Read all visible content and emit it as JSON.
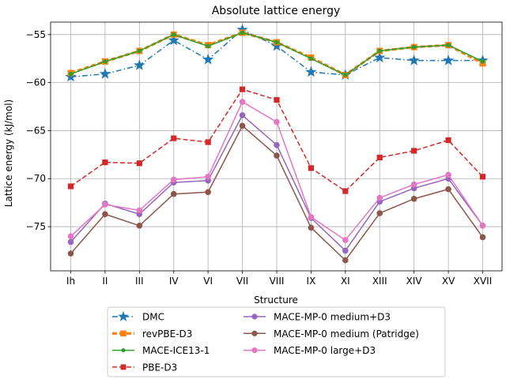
{
  "chart_data": {
    "type": "line",
    "title": "Absolute lattice energy",
    "xlabel": "Structure",
    "ylabel": "Lattice energy (kJ/mol)",
    "categories": [
      "Ih",
      "II",
      "III",
      "IV",
      "VI",
      "VII",
      "VIII",
      "IX",
      "XI",
      "XIII",
      "XIV",
      "XV",
      "XVII"
    ],
    "ylim": [
      -79.6,
      -53.7
    ],
    "yticks": [
      -55,
      -60,
      -65,
      -70,
      -75
    ],
    "grid": true,
    "legend": "lower center, below plot, 2 columns",
    "series": [
      {
        "name": "DMC",
        "color": "#1f77b4",
        "marker": "star",
        "linestyle": "dashdot",
        "values": [
          -59.4,
          -59.1,
          -58.2,
          -55.6,
          -57.6,
          -54.5,
          -56.2,
          -58.9,
          -59.2,
          -57.4,
          -57.7,
          -57.7,
          -57.7
        ]
      },
      {
        "name": "revPBE-D3",
        "color": "#ff7f0e",
        "marker": "square",
        "linestyle": "dashed",
        "thick": true,
        "values": [
          -59.0,
          -57.8,
          -56.7,
          -55.0,
          -56.1,
          -54.8,
          -55.8,
          -57.4,
          -59.2,
          -56.7,
          -56.3,
          -56.1,
          -58.0
        ]
      },
      {
        "name": "MACE-ICE13-1",
        "color": "#2ca02c",
        "marker": "dot",
        "linestyle": "solid",
        "values": [
          -59.1,
          -57.8,
          -56.7,
          -55.0,
          -56.2,
          -54.8,
          -55.8,
          -57.5,
          -59.2,
          -56.7,
          -56.3,
          -56.1,
          -57.8
        ]
      },
      {
        "name": "PBE-D3",
        "color": "#d62728",
        "marker": "square",
        "linestyle": "dashed",
        "values": [
          -70.8,
          -68.3,
          -68.4,
          -65.8,
          -66.2,
          -60.7,
          -61.8,
          -68.9,
          -71.3,
          -67.8,
          -67.1,
          -66.0,
          -69.8
        ]
      },
      {
        "name": "MACE-MP-0 medium+D3",
        "color": "#9467bd",
        "marker": "circle",
        "linestyle": "solid",
        "values": [
          -76.6,
          -72.6,
          -73.7,
          -70.4,
          -70.2,
          -63.4,
          -66.5,
          -74.1,
          -77.5,
          -72.4,
          -71.0,
          -70.0,
          -74.9
        ]
      },
      {
        "name": "MACE-MP-0 medium (Patridge)",
        "color": "#8c564b",
        "marker": "circle",
        "linestyle": "solid",
        "values": [
          -77.8,
          -73.7,
          -74.9,
          -71.6,
          -71.4,
          -64.5,
          -67.6,
          -75.1,
          -78.5,
          -73.6,
          -72.1,
          -71.1,
          -76.1
        ]
      },
      {
        "name": "MACE-MP-0 large+D3",
        "color": "#e377c2",
        "marker": "circle",
        "linestyle": "solid",
        "values": [
          -76.0,
          -72.7,
          -73.3,
          -70.1,
          -69.8,
          -62.0,
          -64.1,
          -74.0,
          -76.4,
          -72.0,
          -70.6,
          -69.6,
          -74.9
        ]
      }
    ]
  }
}
